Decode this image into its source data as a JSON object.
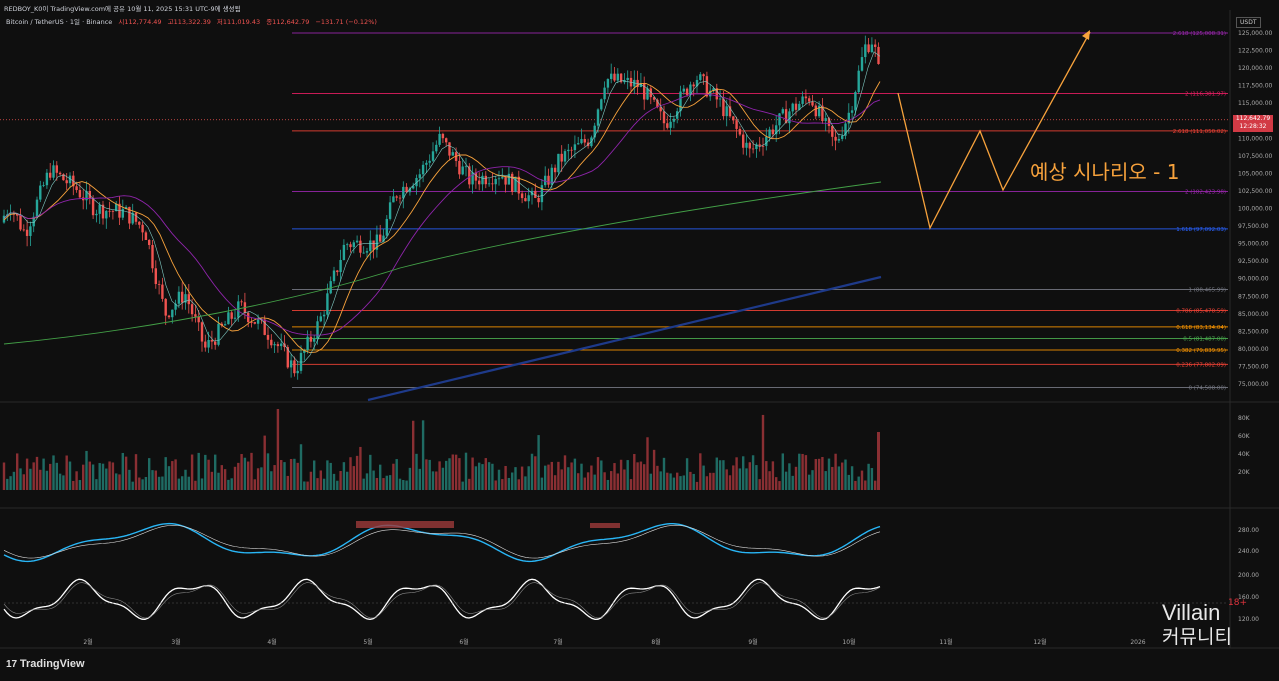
{
  "header": {
    "title": "REDBOY_K0이 TradingView.com에 공유 10월 11, 2025 15:31 UTC-9에 생성됨"
  },
  "symbol": {
    "name": "Bitcoin / TetherUS · 1일 · Binance",
    "open": "시112,774.49",
    "high": "고113,322.39",
    "low": "저111,019.43",
    "close": "종112,642.79",
    "change": "−131.71 (−0.12%)"
  },
  "price_tag": {
    "price": "112,642.79",
    "time": "12:28:32"
  },
  "currency_button": "USDT",
  "scenario_label": "예상 시나리오 - 1",
  "watermark": {
    "line1": "Villain",
    "line2": "커뮤니티",
    "badge": "18+"
  },
  "footer": {
    "logo": "TradingView"
  },
  "colors": {
    "background": "#0f0f0f",
    "up_candle": "#26a69a",
    "down_candle": "#ef5350",
    "scenario": "#f7a23c",
    "fib_blue": "#2962ff"
  },
  "chart_data": [
    {
      "type": "candlestick",
      "name": "Bitcoin / TetherUS 1D",
      "x_ticks": [
        "2월",
        "3월",
        "4월",
        "5월",
        "6월",
        "7월",
        "8월",
        "9월",
        "10월",
        "11월",
        "12월",
        "2026"
      ],
      "y_ticks": [
        "125,000.00",
        "122,500.00",
        "120,000.00",
        "117,500.00",
        "115,000.00",
        "112,500.00",
        "110,000.00",
        "107,500.00",
        "105,000.00",
        "102,500.00",
        "100,000.00",
        "97,500.00",
        "95,000.00",
        "92,500.00",
        "90,000.00",
        "87,500.00",
        "85,000.00",
        "82,500.00",
        "80,000.00",
        "77,500.00",
        "75,000.00"
      ],
      "ylim": [
        74000,
        126000
      ],
      "fib_levels": [
        {
          "label": "2.618 (125,008.31)",
          "value": 125008.31,
          "color": "#9c27b0"
        },
        {
          "label": "2 (116,381.97)",
          "value": 116381.97,
          "color": "#e91e63"
        },
        {
          "label": "2.618 (111,050.02)",
          "value": 111050.02,
          "color": "#f44336"
        },
        {
          "label": "2 (102,423.98)",
          "value": 102423.98,
          "color": "#9c27b0"
        },
        {
          "label": "1.618 (97,092.03)",
          "value": 97092.03,
          "color": "#2962ff"
        },
        {
          "label": "1 (88,465.99)",
          "value": 88465.99,
          "color": "#787b86"
        },
        {
          "label": "0.786 (85,478.59)",
          "value": 85478.59,
          "color": "#f44336"
        },
        {
          "label": "0.618 (83,134.04)",
          "value": 83134.04,
          "color": "#ff9800"
        },
        {
          "label": "0.5 (81,487.00)",
          "value": 81487.0,
          "color": "#4caf50"
        },
        {
          "label": "0.382 (79,839.95)",
          "value": 79839.95,
          "color": "#ff9800"
        },
        {
          "label": "0.236 (77,802.09)",
          "value": 77802.09,
          "color": "#f44336"
        },
        {
          "label": "0 (74,508.00)",
          "value": 74508.0,
          "color": "#787b86"
        }
      ],
      "last_close": 112642.79
    },
    {
      "type": "bar",
      "name": "Volume",
      "y_ticks": [
        "80K",
        "60K",
        "40K",
        "20K"
      ]
    },
    {
      "type": "line",
      "name": "Oscillator 1",
      "y_ticks": [
        "280.00",
        "240.00"
      ]
    },
    {
      "type": "line",
      "name": "Oscillator 2",
      "y_ticks": [
        "200.00",
        "160.00",
        "120.00"
      ]
    }
  ]
}
